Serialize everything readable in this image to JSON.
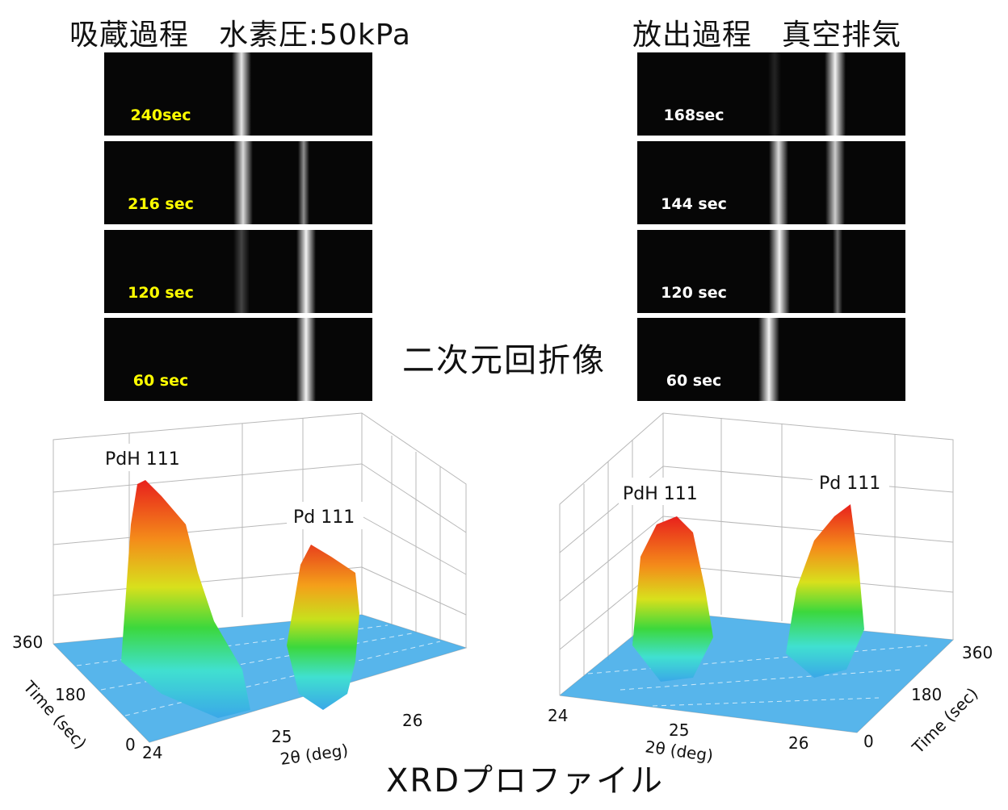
{
  "left": {
    "title": "吸蔵過程　水素圧:50kPa",
    "panels": [
      {
        "time": "240sec"
      },
      {
        "time": "216 sec"
      },
      {
        "time": "120 sec"
      },
      {
        "time": "60 sec"
      }
    ],
    "plot": {
      "peak_label_1": "PdH 111",
      "peak_label_2": "Pd 111",
      "time_ticks": [
        "360",
        "180",
        "0"
      ],
      "time_axis_label": "Time (sec)",
      "theta_ticks": [
        "24",
        "25",
        "26"
      ],
      "theta_axis_label": "2θ (deg)"
    }
  },
  "right": {
    "title": "放出過程　真空排気",
    "panels": [
      {
        "time": "168sec"
      },
      {
        "time": "144 sec"
      },
      {
        "time": "120 sec"
      },
      {
        "time": "60 sec"
      }
    ],
    "plot": {
      "peak_label_1": "PdH 111",
      "peak_label_2": "Pd 111",
      "time_ticks": [
        "360",
        "180",
        "0"
      ],
      "time_axis_label": "Time (sec)",
      "theta_ticks": [
        "24",
        "25",
        "26"
      ],
      "theta_axis_label": "2θ (deg)"
    }
  },
  "center_label": "二次元回折像",
  "bottom_label": "XRDプロファイル",
  "colors": {
    "yellow_label": "#ffff00",
    "floor_blue": "#3aa8e8",
    "peak_red": "#e8201c"
  }
}
